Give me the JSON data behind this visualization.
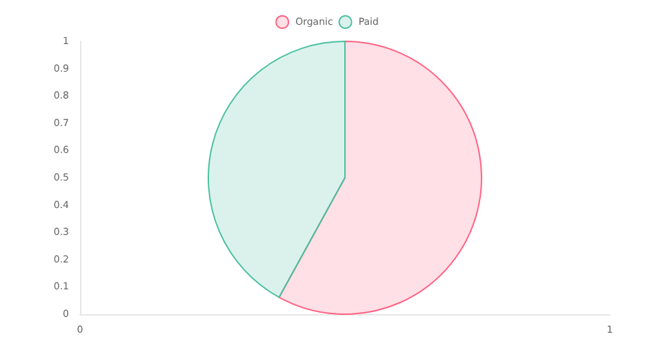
{
  "chart_data": [
    {
      "type": "pie",
      "categories": [
        "Organic",
        "Paid"
      ],
      "values": [
        58,
        42
      ],
      "colors": [
        "#ff6384",
        "#4bc0a0"
      ],
      "legend": "top"
    },
    {
      "type": "scatter",
      "grid": false,
      "xlim": [
        0,
        1
      ],
      "xticks": [
        0,
        1
      ],
      "ylim": [
        0,
        1
      ],
      "yticks": [
        0,
        0.1,
        0.2,
        0.3,
        0.4,
        0.5,
        0.6,
        0.7,
        0.8,
        0.9,
        1
      ]
    }
  ]
}
